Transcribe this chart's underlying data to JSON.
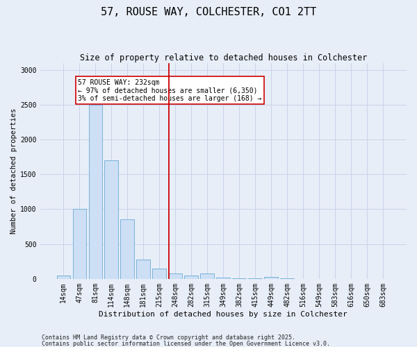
{
  "title": "57, ROUSE WAY, COLCHESTER, CO1 2TT",
  "subtitle": "Size of property relative to detached houses in Colchester",
  "xlabel": "Distribution of detached houses by size in Colchester",
  "ylabel": "Number of detached properties",
  "categories": [
    "14sqm",
    "47sqm",
    "81sqm",
    "114sqm",
    "148sqm",
    "181sqm",
    "215sqm",
    "248sqm",
    "282sqm",
    "315sqm",
    "349sqm",
    "382sqm",
    "415sqm",
    "449sqm",
    "482sqm",
    "516sqm",
    "549sqm",
    "583sqm",
    "616sqm",
    "650sqm",
    "683sqm"
  ],
  "values": [
    50,
    1000,
    2500,
    1700,
    850,
    275,
    150,
    75,
    50,
    75,
    15,
    5,
    5,
    30,
    5,
    0,
    0,
    0,
    0,
    0,
    0
  ],
  "bar_color": "#ccdff5",
  "bar_edge_color": "#6aaad4",
  "grid_color": "#c8d4e8",
  "bg_color": "#e8eef8",
  "vline_x": 6.6,
  "vline_color": "#cc0000",
  "annotation_text": "57 ROUSE WAY: 232sqm\n← 97% of detached houses are smaller (6,350)\n3% of semi-detached houses are larger (168) →",
  "annotation_box_color": "#ffffff",
  "annotation_box_edge": "#cc0000",
  "footer1": "Contains HM Land Registry data © Crown copyright and database right 2025.",
  "footer2": "Contains public sector information licensed under the Open Government Licence v3.0.",
  "ylim": [
    0,
    3100
  ],
  "yticks": [
    0,
    500,
    1000,
    1500,
    2000,
    2500,
    3000
  ],
  "title_fontsize": 11,
  "subtitle_fontsize": 8.5,
  "tick_fontsize": 7,
  "ylabel_fontsize": 7.5,
  "xlabel_fontsize": 8,
  "annotation_fontsize": 7,
  "footer_fontsize": 6
}
